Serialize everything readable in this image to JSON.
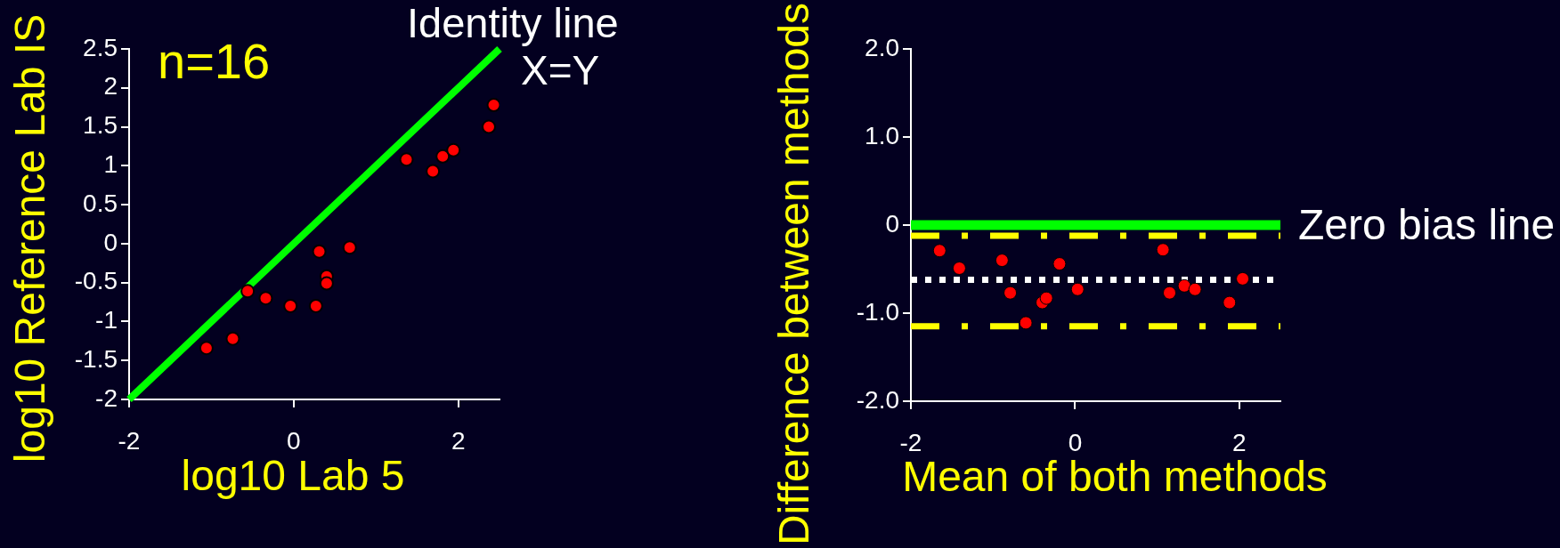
{
  "chart_data": [
    {
      "type": "scatter",
      "xlabel": "log10 Lab 5",
      "ylabel": "log10 Reference Lab IS",
      "annotations": [
        "n=16",
        "X=Y"
      ],
      "series": [
        {
          "type": "scatter",
          "color": "#ff0000",
          "x": [
            -1.06,
            -0.74,
            -0.56,
            -0.34,
            -0.04,
            0.27,
            0.31,
            0.4,
            0.4,
            0.68,
            1.37,
            1.69,
            1.81,
            1.94,
            2.37,
            2.43
          ],
          "values": [
            -1.34,
            -1.22,
            -0.61,
            -0.7,
            -0.8,
            -0.8,
            -0.1,
            -0.42,
            -0.51,
            -0.05,
            1.08,
            0.93,
            1.12,
            1.2,
            1.5,
            1.78
          ]
        },
        {
          "type": "line",
          "name": "Identity line",
          "color": "#00ff00",
          "marker": "none",
          "x": [
            -2,
            2.5
          ],
          "values": [
            -2,
            2.5
          ]
        }
      ],
      "xlim": [
        -2,
        2.5
      ],
      "ylim": [
        -2,
        2.5
      ],
      "xticks": [
        -2,
        0,
        2
      ],
      "yticks": [
        -2,
        -1.5,
        -1,
        -0.5,
        0,
        0.5,
        1,
        1.5,
        2,
        2.5
      ],
      "marker": "circle"
    },
    {
      "type": "scatter",
      "xlabel": "Mean of both methods",
      "ylabel": "Difference between methods",
      "color": "#ff0000",
      "x": [
        -1.65,
        -1.41,
        -0.89,
        -0.79,
        -0.6,
        -0.4,
        -0.35,
        -0.19,
        0.03,
        1.07,
        1.15,
        1.33,
        1.46,
        1.88,
        2.04
      ],
      "values": [
        -0.29,
        -0.49,
        -0.4,
        -0.77,
        -1.11,
        -0.88,
        -0.83,
        -0.44,
        -0.73,
        -0.28,
        -0.77,
        -0.69,
        -0.73,
        -0.88,
        -0.61
      ],
      "xlim": [
        -2,
        2.5
      ],
      "ylim": [
        -2,
        2
      ],
      "xticks": [
        -2,
        0,
        2
      ],
      "yticks": [
        {
          "value": -2,
          "label": "-2.0"
        },
        {
          "value": -1,
          "label": "-1.0"
        },
        0,
        {
          "value": 1,
          "label": "1.0"
        },
        {
          "value": 2,
          "label": "2.0"
        }
      ],
      "ref_lines": [
        {
          "axis": "y",
          "value": 0,
          "label": "Zero bias line",
          "color": "#00ff00",
          "line_style": "solid"
        },
        {
          "axis": "y",
          "value": -0.12,
          "color": "#ffff00",
          "line_style": "dashdot"
        },
        {
          "axis": "y",
          "value": -0.62,
          "color": "#ffffff",
          "line_style": "dotted"
        },
        {
          "axis": "y",
          "value": -1.15,
          "color": "#ffff00",
          "line_style": "dashdot"
        }
      ],
      "marker": "circle"
    }
  ]
}
